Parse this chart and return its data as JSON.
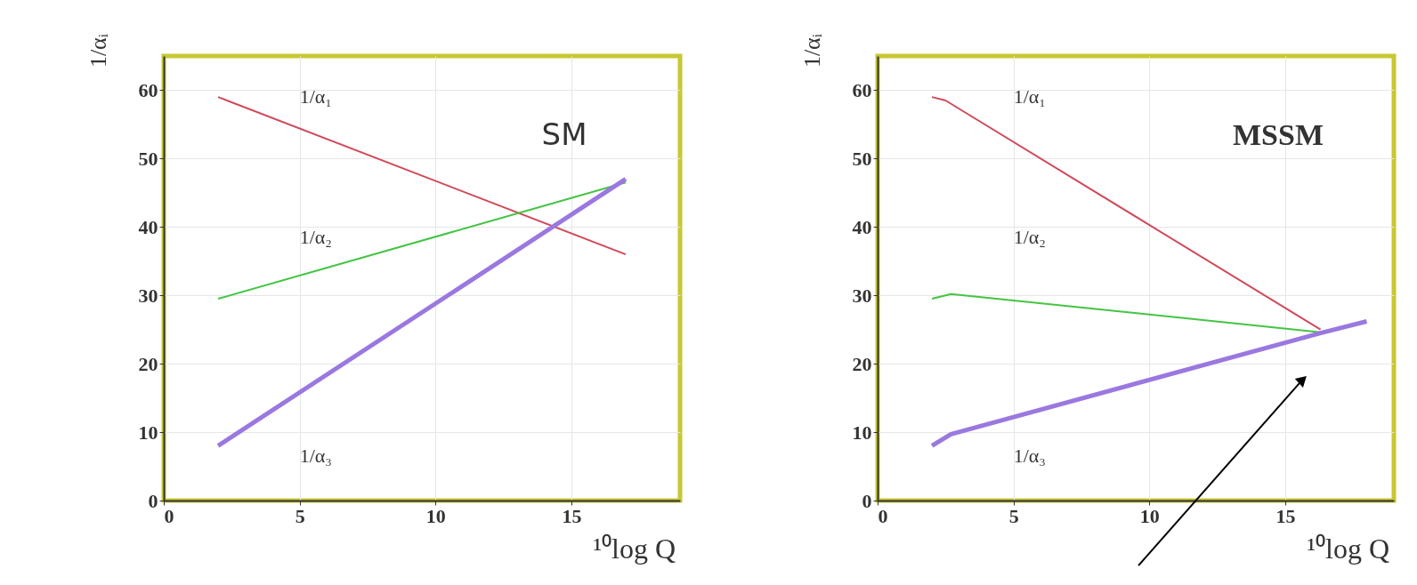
{
  "chart_data": [
    {
      "type": "line",
      "title": "SM",
      "xlabel": "¹⁰log Q",
      "ylabel": "1/αᵢ",
      "xlim": [
        0,
        19
      ],
      "ylim": [
        0,
        65
      ],
      "xticks": [
        0,
        5,
        10,
        15
      ],
      "yticks": [
        0,
        10,
        20,
        30,
        40,
        50,
        60
      ],
      "grid": true,
      "marker": "none",
      "line_style": "solid",
      "series": [
        {
          "name": "1/α₁",
          "color": "#d04a5a",
          "x": [
            2,
            17
          ],
          "values": [
            59,
            36
          ]
        },
        {
          "name": "1/α₂",
          "color": "#44c444",
          "x": [
            2,
            17
          ],
          "values": [
            29.5,
            46.5
          ]
        },
        {
          "name": "1/α₃",
          "color": "#9a78e0",
          "x": [
            2,
            17
          ],
          "values": [
            8,
            47
          ]
        }
      ]
    },
    {
      "type": "line",
      "title": "MSSM",
      "xlabel": "¹⁰log Q",
      "ylabel": "1/αᵢ",
      "xlim": [
        0,
        19
      ],
      "ylim": [
        0,
        65
      ],
      "xticks": [
        0,
        5,
        10,
        15
      ],
      "yticks": [
        0,
        10,
        20,
        30,
        40,
        50,
        60
      ],
      "grid": true,
      "marker": "none",
      "line_style": "solid",
      "series": [
        {
          "name": "1/α₁",
          "color": "#d04a5a",
          "x": [
            2,
            2.5,
            16.3
          ],
          "values": [
            59,
            58.5,
            25
          ]
        },
        {
          "name": "1/α₂",
          "color": "#44c444",
          "x": [
            2,
            2.7,
            16.3
          ],
          "values": [
            29.5,
            30.2,
            24.6
          ]
        },
        {
          "name": "1/α₃",
          "color": "#9a78e0",
          "x": [
            2,
            2.7,
            16.3,
            18
          ],
          "values": [
            8,
            9.7,
            24.5,
            26.2
          ]
        }
      ]
    }
  ]
}
